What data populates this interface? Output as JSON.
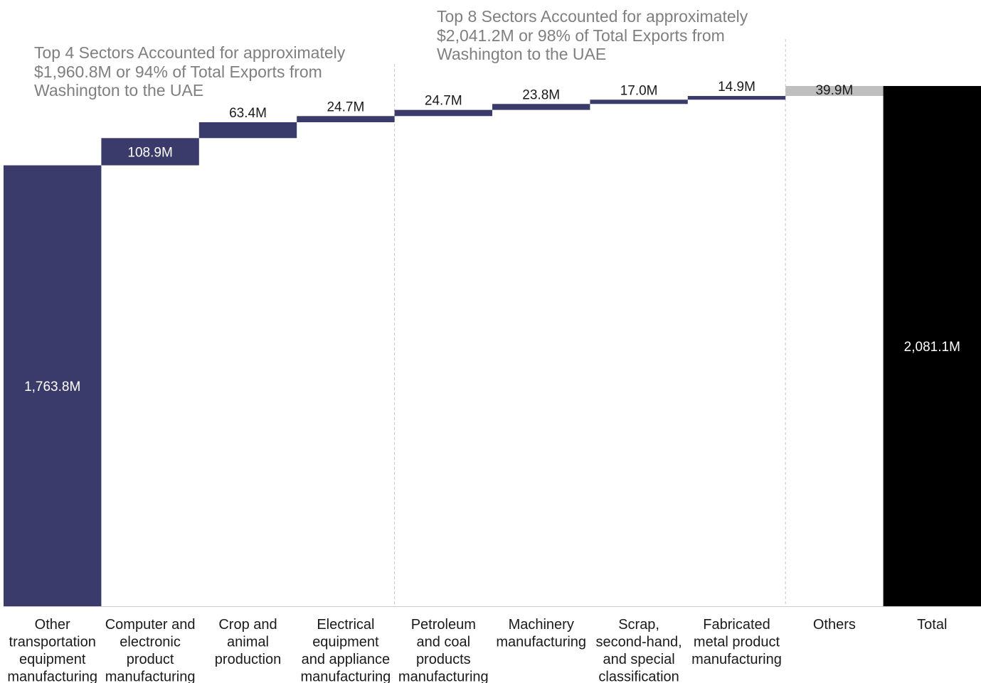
{
  "chart_data": {
    "type": "bar",
    "subtype": "waterfall",
    "categories": [
      "Other transportation equipment manufacturing",
      "Computer and electronic product manufacturing",
      "Crop and animal production",
      "Electrical equipment and appliance manufacturing",
      "Petroleum and coal products manufacturing",
      "Machinery manufacturing",
      "Scrap, second-hand, and special classification",
      "Fabricated metal product manufacturing",
      "Others",
      "Total"
    ],
    "category_lines": [
      [
        "Other",
        "transportation",
        "equipment",
        "manufacturing"
      ],
      [
        "Computer and",
        "electronic",
        "product",
        "manufacturing"
      ],
      [
        "Crop and",
        "animal",
        "production"
      ],
      [
        "Electrical",
        "equipment",
        "and appliance",
        "manufacturing"
      ],
      [
        "Petroleum",
        "and coal",
        "products",
        "manufacturing"
      ],
      [
        "Machinery",
        "manufacturing"
      ],
      [
        "Scrap,",
        "second-hand,",
        "and special",
        "classification"
      ],
      [
        "Fabricated",
        "metal product",
        "manufacturing"
      ],
      [
        "Others"
      ],
      [
        "Total"
      ]
    ],
    "values": [
      1763.8,
      108.9,
      63.4,
      24.7,
      24.7,
      23.8,
      17.0,
      14.9,
      39.9,
      2081.1
    ],
    "data_labels": [
      "1,763.8M",
      "108.9M",
      "63.4M",
      "24.7M",
      "24.7M",
      "23.8M",
      "17.0M",
      "14.9M",
      "39.9M",
      "2,081.1M"
    ],
    "unit": "M",
    "ylim": [
      0,
      2081.1
    ],
    "grid": false,
    "legend": "none",
    "colors": {
      "sector": "#3b3b6b",
      "others": "#bfbfbf",
      "total": "#000000",
      "divider": "#c8c8c8"
    },
    "annotations": [
      "Top 4 Sectors Accounted for approximately\n$1,960.8M or 94% of Total Exports from\nWashington to the UAE",
      "Top 8 Sectors Accounted for approximately\n$2,041.2M or 98% of Total Exports from\nWashington to the UAE"
    ]
  }
}
